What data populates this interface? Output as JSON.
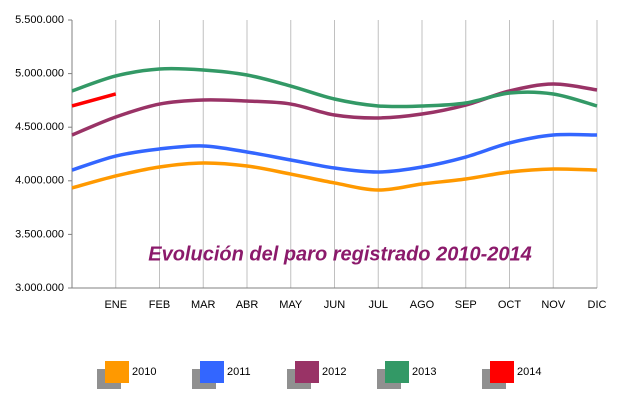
{
  "chart_data": {
    "type": "line",
    "title": "Evolución del paro registrado 2010-2014",
    "categories": [
      null,
      "ENE",
      "FEB",
      "MAR",
      "ABR",
      "MAY",
      "JUN",
      "JUL",
      "AGO",
      "SEP",
      "OCT",
      "NOV",
      "DIC"
    ],
    "series": [
      {
        "name": "2010",
        "color": "#ff9900",
        "values": [
          3933000,
          4045000,
          4129000,
          4166000,
          4138000,
          4063000,
          3980000,
          3914000,
          3970000,
          4017000,
          4082000,
          4110000,
          4100000
        ]
      },
      {
        "name": "2011",
        "color": "#3366ff",
        "values": [
          4100000,
          4231000,
          4297000,
          4325000,
          4269000,
          4194000,
          4119000,
          4082000,
          4129000,
          4222000,
          4353000,
          4427000,
          4427000
        ]
      },
      {
        "name": "2012",
        "color": "#993366",
        "values": [
          4427000,
          4595000,
          4716000,
          4754000,
          4744000,
          4716000,
          4614000,
          4586000,
          4623000,
          4707000,
          4838000,
          4903000,
          4847000
        ]
      },
      {
        "name": "2013",
        "color": "#339966",
        "values": [
          4838000,
          4978000,
          5043000,
          5034000,
          4987000,
          4884000,
          4763000,
          4698000,
          4698000,
          4726000,
          4819000,
          4810000,
          4698000
        ]
      },
      {
        "name": "2014",
        "color": "#ff0000",
        "values": [
          4698000,
          4810000,
          null,
          null,
          null,
          null,
          null,
          null,
          null,
          null,
          null,
          null,
          null
        ]
      }
    ],
    "ylim": [
      3000000,
      5500000
    ],
    "yticks": [
      {
        "value": 3000000,
        "label": "3.000.000"
      },
      {
        "value": 3500000,
        "label": "3.500.000"
      },
      {
        "value": 4000000,
        "label": "4.000.000"
      },
      {
        "value": 4500000,
        "label": "4.500.000"
      },
      {
        "value": 5000000,
        "label": "5.000.000"
      },
      {
        "value": 5500000,
        "label": "5.500.000"
      }
    ],
    "grid": "vertical",
    "legend": "bottom"
  }
}
